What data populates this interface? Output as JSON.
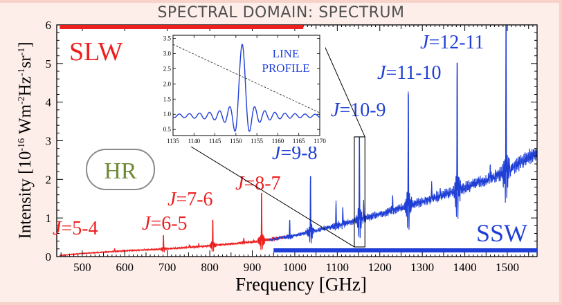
{
  "slide_title": "SPECTRAL DOMAIN: SPECTRUM",
  "colors": {
    "slw": "#ee1f1f",
    "ssw": "#1f3fd6",
    "hr_text": "#6e8a34",
    "axis": "#000000",
    "inset_line": "#1f3fd6",
    "background": "#fdeee9"
  },
  "chart_data": [
    {
      "type": "line",
      "title": "",
      "xlabel": "Frequency [GHz]",
      "ylabel_parts": {
        "pre": "Intensity [10",
        "exp1": "-16",
        "mid1": " Wm",
        "exp2": "-2",
        "mid2": "Hz",
        "exp3": "-1",
        "mid3": "sr",
        "exp4": "-1",
        "post": "]"
      },
      "xlim": [
        440,
        1570
      ],
      "ylim": [
        0,
        6
      ],
      "xticks": [
        500,
        600,
        700,
        800,
        900,
        1000,
        1100,
        1200,
        1300,
        1400,
        1500
      ],
      "yticks": [
        0,
        1,
        2,
        3,
        4,
        5,
        6
      ],
      "continuum": {
        "x": [
          447,
          500,
          600,
          700,
          800,
          900,
          950,
          1000,
          1100,
          1200,
          1300,
          1400,
          1500,
          1570
        ],
        "y": [
          0.03,
          0.08,
          0.15,
          0.2,
          0.28,
          0.38,
          0.45,
          0.55,
          0.8,
          1.1,
          1.42,
          1.78,
          2.2,
          2.7
        ]
      },
      "series": [
        {
          "name": "SLW",
          "x_range": [
            447,
            990
          ],
          "color_key": "slw",
          "lines": [
            {
              "label": "J=5-4",
              "freq": 576,
              "peak": 0.2
            },
            {
              "label": "J=6-5",
              "freq": 691,
              "peak": 0.55
            },
            {
              "label": "J=7-6",
              "freq": 807,
              "peak": 0.95
            },
            {
              "label": "J=8-7",
              "freq": 922,
              "peak": 1.65
            }
          ],
          "extra_spikes": [
            {
              "freq": 557,
              "peak": 0.12
            },
            {
              "freq": 752,
              "peak": 0.3
            },
            {
              "freq": 774,
              "peak": 0.33
            },
            {
              "freq": 830,
              "peak": 0.32
            },
            {
              "freq": 880,
              "peak": 0.48
            },
            {
              "freq": 950,
              "peak": 0.5
            }
          ]
        },
        {
          "name": "SSW",
          "x_range": [
            940,
            1570
          ],
          "color_key": "ssw",
          "lines": [
            {
              "label": "J=9-8",
              "freq": 1037,
              "peak": 2.08
            },
            {
              "label": "J=10-9",
              "freq": 1152,
              "peak": 3.1
            },
            {
              "label": "J=11-10",
              "freq": 1267,
              "peak": 4.2
            },
            {
              "label": "J=12-11",
              "freq": 1382,
              "peak": 5.02
            },
            {
              "label": "",
              "freq": 1497,
              "peak": 6.0
            }
          ],
          "extra_spikes": [
            {
              "freq": 988,
              "peak": 0.95
            },
            {
              "freq": 1097,
              "peak": 1.45
            },
            {
              "freq": 1113,
              "peak": 1.25
            },
            {
              "freq": 1162,
              "peak": 1.4
            },
            {
              "freq": 1230,
              "peak": 1.55
            },
            {
              "freq": 1322,
              "peak": 1.95
            },
            {
              "freq": 1342,
              "peak": 1.75
            },
            {
              "freq": 1460,
              "peak": 2.3
            }
          ]
        }
      ],
      "band_labels": {
        "slw": "SLW",
        "ssw": "SSW"
      },
      "bands": {
        "slw_bar": [
          447,
          1020
        ],
        "ssw_bar": [
          950,
          1570
        ]
      },
      "resolution_badge": "HR",
      "zoom_box": {
        "x": [
          1140,
          1165
        ],
        "y": [
          0.25,
          3.1
        ]
      }
    },
    {
      "type": "line",
      "title": "",
      "inset_label_lines": [
        "LINE",
        "PROFILE"
      ],
      "xlim": [
        1135,
        1170
      ],
      "ylim": [
        0.3,
        3.6
      ],
      "xticks": [
        1135,
        1140,
        1145,
        1150,
        1155,
        1160,
        1165,
        1170
      ],
      "yticks": [
        0.5,
        1.0,
        1.5,
        2.0,
        2.5,
        3.0,
        3.5
      ],
      "ytick_labels": [
        "0.5",
        "1.0",
        "1.5",
        "2.0",
        "2.5",
        "3.0",
        "3.5"
      ],
      "profile": {
        "type": "sinc",
        "center": 1151.5,
        "peak": 3.3,
        "baseline": 0.95,
        "first_zero_offset": 1.2,
        "ripple_amplitude": 0.12
      },
      "dashed_trend": {
        "x": [
          1135,
          1170
        ],
        "y": [
          3.3,
          1.05
        ]
      }
    }
  ]
}
